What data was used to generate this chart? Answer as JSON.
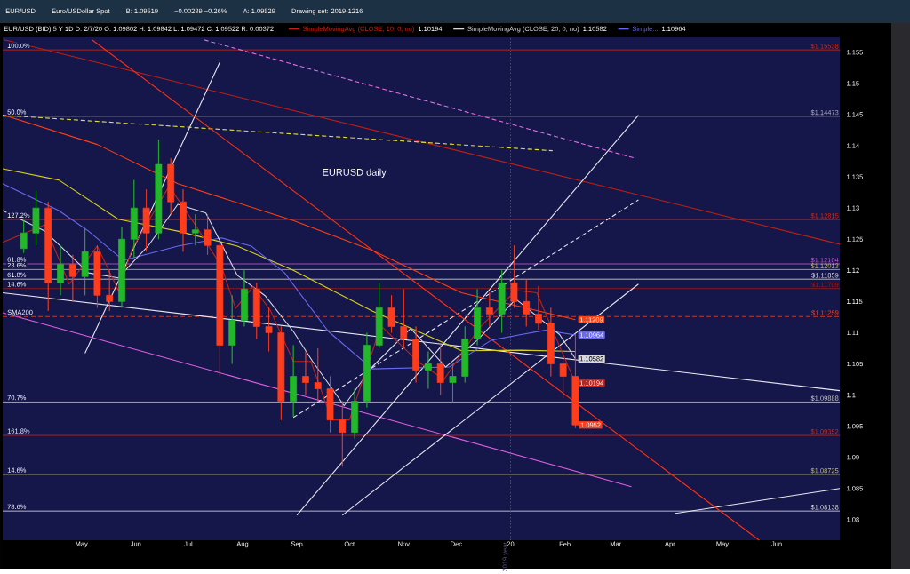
{
  "chart_data": {
    "type": "candlestick",
    "title": "EURUSD daily",
    "subtitle": "EUR/USD (BID) 5 Y 1D   D: 2/7/20   O: 1.09802   H: 1.09842   L: 1.09472   C: 1.09522   R: 0.00372",
    "annotations": [
      "EUR/USD",
      "Euro/USDollar Spot",
      "B: 1.09519",
      "−0.00289 −0.26%",
      "A: 1.09529",
      "Drawing set: 2019-1216",
      {
        "text": "100.0%",
        "x": "2019-03-19",
        "y": 1.15538
      },
      {
        "text": "50.0%",
        "x": "2019-03-19",
        "y": 1.14473
      },
      {
        "text": "127.2%",
        "x": "2019-03-19",
        "y": 1.12815
      },
      {
        "text": "61.8%",
        "x": "2019-03-19",
        "y": 1.12104
      },
      {
        "text": "23.6%",
        "x": "2019-03-19",
        "y": 1.12013
      },
      {
        "text": "61.8%",
        "x": "2019-03-19",
        "y": 1.11859
      },
      {
        "text": "14.6%",
        "x": "2019-03-19",
        "y": 1.11709
      },
      {
        "text": "SMA200",
        "x": "2019-03-19",
        "y": 1.11259
      },
      {
        "text": "70.7%",
        "x": "2019-03-19",
        "y": 1.09888
      },
      {
        "text": "161.8%",
        "x": "2019-03-19",
        "y": 1.09352
      },
      {
        "text": "14.6%",
        "x": "2019-03-19",
        "y": 1.08725
      },
      {
        "text": "78.6%",
        "x": "2019-03-19",
        "y": 1.08138
      },
      {
        "text": "1.0952",
        "x": "2020-02-07",
        "y": 1.0952
      }
    ],
    "x": [
      "2019-03-29",
      "2019-04-05",
      "2019-04-12",
      "2019-04-19",
      "2019-04-26",
      "2019-05-03",
      "2019-05-10",
      "2019-05-17",
      "2019-05-24",
      "2019-05-31",
      "2019-06-07",
      "2019-06-14",
      "2019-06-21",
      "2019-06-28",
      "2019-07-05",
      "2019-07-12",
      "2019-07-19",
      "2019-07-26",
      "2019-08-02",
      "2019-08-09",
      "2019-08-16",
      "2019-08-23",
      "2019-08-30",
      "2019-09-06",
      "2019-09-13",
      "2019-09-20",
      "2019-09-27",
      "2019-10-04",
      "2019-10-11",
      "2019-10-18",
      "2019-10-25",
      "2019-11-01",
      "2019-11-08",
      "2019-11-15",
      "2019-11-22",
      "2019-11-29",
      "2019-12-06",
      "2019-12-13",
      "2019-12-20",
      "2019-12-27",
      "2020-01-03",
      "2020-01-10",
      "2020-01-17",
      "2020-01-24",
      "2020-01-31",
      "2020-02-07"
    ],
    "ohlc": [
      [
        1.1235,
        1.128,
        1.1228,
        1.126
      ],
      [
        1.126,
        1.1328,
        1.124,
        1.13
      ],
      [
        1.13,
        1.131,
        1.1135,
        1.118
      ],
      [
        1.118,
        1.124,
        1.116,
        1.121
      ],
      [
        1.121,
        1.1225,
        1.115,
        1.119
      ],
      [
        1.119,
        1.1268,
        1.116,
        1.123
      ],
      [
        1.123,
        1.124,
        1.114,
        1.116
      ],
      [
        1.116,
        1.12,
        1.1135,
        1.115
      ],
      [
        1.115,
        1.127,
        1.114,
        1.125
      ],
      [
        1.125,
        1.1345,
        1.122,
        1.13
      ],
      [
        1.13,
        1.133,
        1.123,
        1.126
      ],
      [
        1.126,
        1.141,
        1.125,
        1.137
      ],
      [
        1.137,
        1.138,
        1.129,
        1.131
      ],
      [
        1.131,
        1.133,
        1.123,
        1.126
      ],
      [
        1.126,
        1.129,
        1.124,
        1.1265
      ],
      [
        1.1265,
        1.129,
        1.1225,
        1.124
      ],
      [
        1.124,
        1.1245,
        1.103,
        1.108
      ],
      [
        1.108,
        1.116,
        1.105,
        1.112
      ],
      [
        1.112,
        1.12,
        1.111,
        1.117
      ],
      [
        1.117,
        1.118,
        1.109,
        1.111
      ],
      [
        1.111,
        1.114,
        1.107,
        1.11
      ],
      [
        1.11,
        1.111,
        1.096,
        1.099
      ],
      [
        1.099,
        1.108,
        1.0965,
        1.103
      ],
      [
        1.103,
        1.107,
        1.1,
        1.102
      ],
      [
        1.102,
        1.1075,
        1.099,
        1.101
      ],
      [
        1.101,
        1.103,
        1.094,
        1.096
      ],
      [
        1.096,
        1.099,
        1.0885,
        1.094
      ],
      [
        1.094,
        1.101,
        1.093,
        1.099
      ],
      [
        1.099,
        1.11,
        1.098,
        1.108
      ],
      [
        1.108,
        1.118,
        1.1075,
        1.114
      ],
      [
        1.114,
        1.116,
        1.11,
        1.111
      ],
      [
        1.111,
        1.117,
        1.1075,
        1.109
      ],
      [
        1.109,
        1.111,
        1.102,
        1.104
      ],
      [
        1.104,
        1.107,
        1.101,
        1.105
      ],
      [
        1.105,
        1.108,
        1.1,
        1.102
      ],
      [
        1.102,
        1.105,
        1.0988,
        1.103
      ],
      [
        1.103,
        1.111,
        1.102,
        1.109
      ],
      [
        1.109,
        1.117,
        1.108,
        1.114
      ],
      [
        1.114,
        1.1165,
        1.111,
        1.113
      ],
      [
        1.113,
        1.12,
        1.11,
        1.118
      ],
      [
        1.118,
        1.124,
        1.114,
        1.115
      ],
      [
        1.115,
        1.1185,
        1.111,
        1.113
      ],
      [
        1.113,
        1.1175,
        1.1105,
        1.1115
      ],
      [
        1.1115,
        1.114,
        1.103,
        1.105
      ],
      [
        1.105,
        1.106,
        1.0995,
        1.103
      ],
      [
        1.103,
        1.1098,
        1.0947,
        1.0952
      ]
    ],
    "colors": [
      "#22b82a",
      "#22b82a",
      "#ff3d1c",
      "#22b82a",
      "#ff3d1c",
      "#22b82a",
      "#ff3d1c",
      "#ff3d1c",
      "#22b82a",
      "#22b82a",
      "#ff3d1c",
      "#22b82a",
      "#ff3d1c",
      "#ff3d1c",
      "#22b82a",
      "#ff3d1c",
      "#ff3d1c",
      "#22b82a",
      "#22b82a",
      "#ff3d1c",
      "#ff3d1c",
      "#ff3d1c",
      "#22b82a",
      "#ff3d1c",
      "#ff3d1c",
      "#ff3d1c",
      "#ff3d1c",
      "#22b82a",
      "#22b82a",
      "#22b82a",
      "#ff3d1c",
      "#ff3d1c",
      "#ff3d1c",
      "#22b82a",
      "#ff3d1c",
      "#22b82a",
      "#22b82a",
      "#22b82a",
      "#ff3d1c",
      "#22b82a",
      "#ff3d1c",
      "#ff3d1c",
      "#ff3d1c",
      "#ff3d1c",
      "#ff3d1c",
      "#ff3d1c"
    ],
    "series": [
      {
        "type": "line",
        "color": "#c02010",
        "x": [
          "2019-03-18",
          "2020-07-07"
        ],
        "values": [
          1.157,
          1.1242
        ]
      },
      {
        "type": "line",
        "color": "#e8e8f0",
        "x": [
          "2019-03-17",
          "2020-07-07"
        ],
        "values": [
          1.1164,
          1.1007
        ]
      },
      {
        "type": "line",
        "color": "#e060e0",
        "x": [
          "2019-03-17",
          "2020-03-10"
        ],
        "values": [
          1.1132,
          1.0853
        ]
      },
      {
        "type": "line",
        "color": "#e8e8f0",
        "x": [
          "2019-05-03",
          "2019-07-19"
        ],
        "values": [
          1.1067,
          1.1534
        ]
      },
      {
        "type": "line",
        "color": "#e8e8f0",
        "x": [
          "2019-09-01",
          "2020-03-14"
        ],
        "values": [
          1.0807,
          1.1449
        ]
      },
      {
        "type": "line",
        "color": "#e8e8f0",
        "x": [
          "2019-09-27",
          "2020-03-14"
        ],
        "values": [
          1.0807,
          1.1178
        ]
      },
      {
        "type": "line",
        "color": "#e8e8f0",
        "line_style": "dashed",
        "x": [
          "2019-08-30",
          "2020-03-14"
        ],
        "values": [
          1.0964,
          1.1313
        ]
      },
      {
        "type": "line",
        "color": "#e0e040",
        "line_style": "dashed",
        "x": [
          "2019-03-17",
          "2020-01-25"
        ],
        "values": [
          1.1449,
          1.1392
        ]
      },
      {
        "type": "line",
        "color": "#e070e0",
        "line_style": "dashed",
        "x": [
          "2019-07-10",
          "2020-03-12"
        ],
        "values": [
          1.157,
          1.138
        ]
      },
      {
        "type": "line",
        "color": "#e8e8f0",
        "x": [
          "2020-04-04",
          "2020-07-07"
        ],
        "values": [
          1.081,
          1.085
        ]
      },
      {
        "type": "line",
        "color": "#ff3010",
        "x": [
          "2019-05-07",
          "2020-05-22"
        ],
        "values": [
          1.157,
          1.0767
        ]
      },
      {
        "type": "line",
        "color": "#ff4010",
        "x": [
          "2019-03-18",
          "2019-05-10",
          "2019-06-25",
          "2019-08-30",
          "2019-10-14",
          "2019-12-04",
          "2020-02-07"
        ],
        "values": [
          1.1449,
          1.1402,
          1.1339,
          1.128,
          1.1232,
          1.1164,
          1.11209
        ],
        "value_labels": [
          null,
          null,
          null,
          null,
          null,
          null,
          "1.11209"
        ]
      },
      {
        "type": "line",
        "color": "#d8d020",
        "x": [
          "2019-03-17",
          "2019-04-18",
          "2019-05-22",
          "2019-06-25",
          "2019-07-29",
          "2019-08-30",
          "2019-10-14",
          "2019-12-04",
          "2020-01-07",
          "2020-02-07"
        ],
        "values": [
          1.1363,
          1.1345,
          1.1282,
          1.1263,
          1.1239,
          1.12,
          1.1135,
          1.1071,
          1.1072,
          1.107
        ]
      },
      {
        "type": "line",
        "name": "Simple...",
        "color": "#6a6af0",
        "x": [
          "2019-03-17",
          "2019-04-18",
          "2019-05-05",
          "2019-05-25",
          "2019-06-25",
          "2019-07-20",
          "2019-08-06",
          "2019-08-25",
          "2019-09-19",
          "2019-10-14",
          "2019-11-27",
          "2019-12-21",
          "2020-01-07",
          "2020-01-21",
          "2020-02-07"
        ],
        "values": [
          1.1339,
          1.1296,
          1.1263,
          1.1216,
          1.1239,
          1.1252,
          1.1239,
          1.1196,
          1.1102,
          1.1042,
          1.1045,
          1.1088,
          1.1097,
          1.1104,
          1.10964
        ],
        "value_labels": [
          null,
          null,
          null,
          null,
          null,
          null,
          null,
          null,
          null,
          null,
          null,
          null,
          null,
          null,
          "1.10964"
        ]
      },
      {
        "type": "line",
        "name": "SimpleMovingAvg (CLOSE, 20, 0, no)",
        "color": "#d8d8e0",
        "x": [
          "2019-03-17",
          "2019-04-10",
          "2019-05-05",
          "2019-05-22",
          "2019-06-08",
          "2019-06-25",
          "2019-07-11",
          "2019-07-29",
          "2019-08-14",
          "2019-08-30",
          "2019-09-10",
          "2019-09-28",
          "2019-10-14",
          "2019-11-05",
          "2019-11-25",
          "2019-12-13",
          "2020-01-04",
          "2020-01-29",
          "2020-02-07"
        ],
        "values": [
          1.1296,
          1.1263,
          1.1196,
          1.1188,
          1.1239,
          1.1306,
          1.1292,
          1.1192,
          1.1159,
          1.1102,
          1.1054,
          1.0983,
          1.1045,
          1.1107,
          1.1045,
          1.1088,
          1.1154,
          1.1097,
          1.10582
        ],
        "value_labels": [
          null,
          null,
          null,
          null,
          null,
          null,
          null,
          null,
          null,
          null,
          null,
          null,
          null,
          null,
          null,
          null,
          null,
          null,
          "1.10582"
        ]
      },
      {
        "type": "line",
        "name": "SimpleMovingAvg (CLOSE, 10, 0, no)",
        "color": "#c0231a",
        "x": [
          "2019-03-17",
          "2019-04-10",
          "2019-04-24",
          "2019-05-10",
          "2019-05-22",
          "2019-05-30",
          "2019-06-20",
          "2019-07-05",
          "2019-07-20",
          "2019-07-28",
          "2019-08-07",
          "2019-08-17",
          "2019-08-30",
          "2019-09-09",
          "2019-09-21",
          "2019-10-01",
          "2019-10-19",
          "2019-11-09",
          "2019-11-24",
          "2019-12-14",
          "2020-01-04",
          "2020-01-16",
          "2020-01-29",
          "2020-02-07"
        ],
        "values": [
          1.1245,
          1.1273,
          1.1178,
          1.1239,
          1.1168,
          1.1235,
          1.1335,
          1.1273,
          1.1206,
          1.1139,
          1.1174,
          1.1135,
          1.1054,
          1.1054,
          1.096,
          1.096,
          1.1111,
          1.1054,
          1.1025,
          1.1107,
          1.1168,
          1.1164,
          1.1078,
          1.10194
        ],
        "value_labels": [
          null,
          null,
          null,
          null,
          null,
          null,
          null,
          null,
          null,
          null,
          null,
          null,
          null,
          null,
          null,
          null,
          null,
          null,
          null,
          null,
          null,
          null,
          null,
          "1.10194"
        ]
      }
    ],
    "ref_lines": [
      {
        "axis": "y",
        "value": 1.15538,
        "label": "$1.15538",
        "color": "#d42a12"
      },
      {
        "axis": "y",
        "value": 1.14473,
        "label": "$1.14473",
        "color": "#b0b0c8"
      },
      {
        "axis": "y",
        "value": 1.12815,
        "label": "$1.12815",
        "color": "#d42a12"
      },
      {
        "axis": "y",
        "value": 1.12104,
        "label": "$1.12104",
        "color": "#c060d0"
      },
      {
        "axis": "y",
        "value": 1.12013,
        "label": "$1.12013",
        "color": "#c8c060"
      },
      {
        "axis": "y",
        "value": 1.11859,
        "label": "$1.11859",
        "color": "#e0e0e8"
      },
      {
        "axis": "y",
        "value": 1.11709,
        "label": "$1.11709",
        "color": "#a01a10"
      },
      {
        "axis": "y",
        "value": 1.11259,
        "label": "$1.11259",
        "color": "#ff4010",
        "line_style": "dashed"
      },
      {
        "axis": "y",
        "value": 1.09888,
        "label": "$1.09888",
        "color": "#c8c8d8"
      },
      {
        "axis": "y",
        "value": 1.09352,
        "label": "$1.09352",
        "color": "#d42a12"
      },
      {
        "axis": "y",
        "value": 1.08725,
        "label": "$1.08725",
        "color": "#c8c060"
      },
      {
        "axis": "y",
        "value": 1.08138,
        "label": "$1.08138",
        "color": "#e0e0e8"
      },
      {
        "axis": "x",
        "value": "2020-01-01",
        "label": "2019 year",
        "color": "#5a5a80",
        "line_style": "dotted"
      }
    ],
    "xlim": [
      "2019-03-17",
      "2020-07-07"
    ],
    "xticks": [
      {
        "value": "2019-05-01",
        "label": "May"
      },
      {
        "value": "2019-06-01",
        "label": "Jun"
      },
      {
        "value": "2019-07-01",
        "label": "Jul"
      },
      {
        "value": "2019-08-01",
        "label": "Aug"
      },
      {
        "value": "2019-09-01",
        "label": "Sep"
      },
      {
        "value": "2019-10-01",
        "label": "Oct"
      },
      {
        "value": "2019-11-01",
        "label": "Nov"
      },
      {
        "value": "2019-12-01",
        "label": "Dec"
      },
      {
        "value": "2020-01-01",
        "label": "20"
      },
      {
        "value": "2020-02-01",
        "label": "Feb"
      },
      {
        "value": "2020-03-01",
        "label": "Mar"
      },
      {
        "value": "2020-04-01",
        "label": "Apr"
      },
      {
        "value": "2020-05-01",
        "label": "May"
      },
      {
        "value": "2020-06-01",
        "label": "Jun"
      }
    ],
    "ylim": [
      1.0767,
      1.1574
    ],
    "yticks": [
      1.08,
      1.085,
      1.09,
      1.095,
      1.1,
      1.105,
      1.11,
      1.115,
      1.12,
      1.125,
      1.13,
      1.135,
      1.14,
      1.145,
      1.15,
      1.155
    ],
    "legend": "top"
  }
}
